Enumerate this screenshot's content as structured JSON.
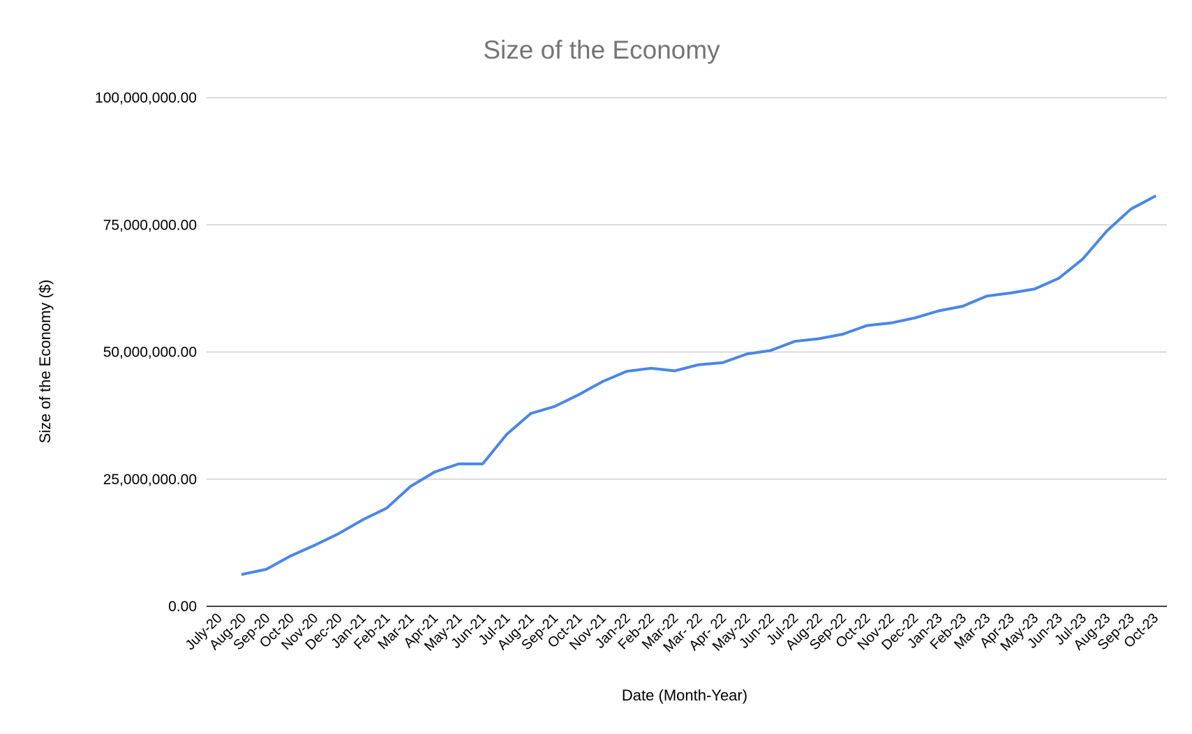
{
  "chart_data": {
    "type": "line",
    "title": "Size of the Economy",
    "xlabel": "Date (Month-Year)",
    "ylabel": "Size of the Economy ($)",
    "ylim": [
      0,
      100000000
    ],
    "yticks": [
      0,
      25000000,
      50000000,
      75000000,
      100000000
    ],
    "ytick_labels": [
      "0.00",
      "25,000,000.00",
      "50,000,000.00",
      "75,000,000.00",
      "100,000,000.00"
    ],
    "grid": true,
    "legend": "none",
    "categories": [
      "July-20",
      "Aug-20",
      "Sep-20",
      "Oct-20",
      "Nov-20",
      "Dec-20",
      "Jan-21",
      "Feb-21",
      "Mar-21",
      "Apr-21",
      "May-21",
      "Jun-21",
      "Jul-21",
      "Aug-21",
      "Sep-21",
      "Oct-21",
      "Nov-21",
      "Jan-22",
      "Feb-22",
      "Mar-22",
      "Mar- 22",
      "Apr- 22",
      "May-22",
      "Jun-22",
      "Jul-22",
      "Aug-22",
      "Sep-22",
      "Oct-22",
      "Nov-22",
      "Dec-22",
      "Jan-23",
      "Feb-23",
      "Mar-23",
      "Apr-23",
      "May-23",
      "Jun-23",
      "Jul-23",
      "Aug-23",
      "Sep-23",
      "Oct-23"
    ],
    "series": [
      {
        "color": "#4a86e8",
        "values": [
          null,
          6300000,
          7300000,
          9900000,
          12000000,
          14300000,
          17000000,
          19300000,
          23600000,
          26400000,
          28000000,
          28000000,
          33800000,
          37900000,
          39300000,
          41600000,
          44200000,
          46200000,
          46800000,
          46300000,
          47500000,
          47900000,
          49600000,
          50300000,
          52100000,
          52600000,
          53500000,
          55200000,
          55700000,
          56700000,
          58100000,
          59000000,
          61000000,
          61600000,
          62400000,
          64500000,
          68300000,
          73800000,
          78100000,
          80600000
        ]
      }
    ]
  }
}
